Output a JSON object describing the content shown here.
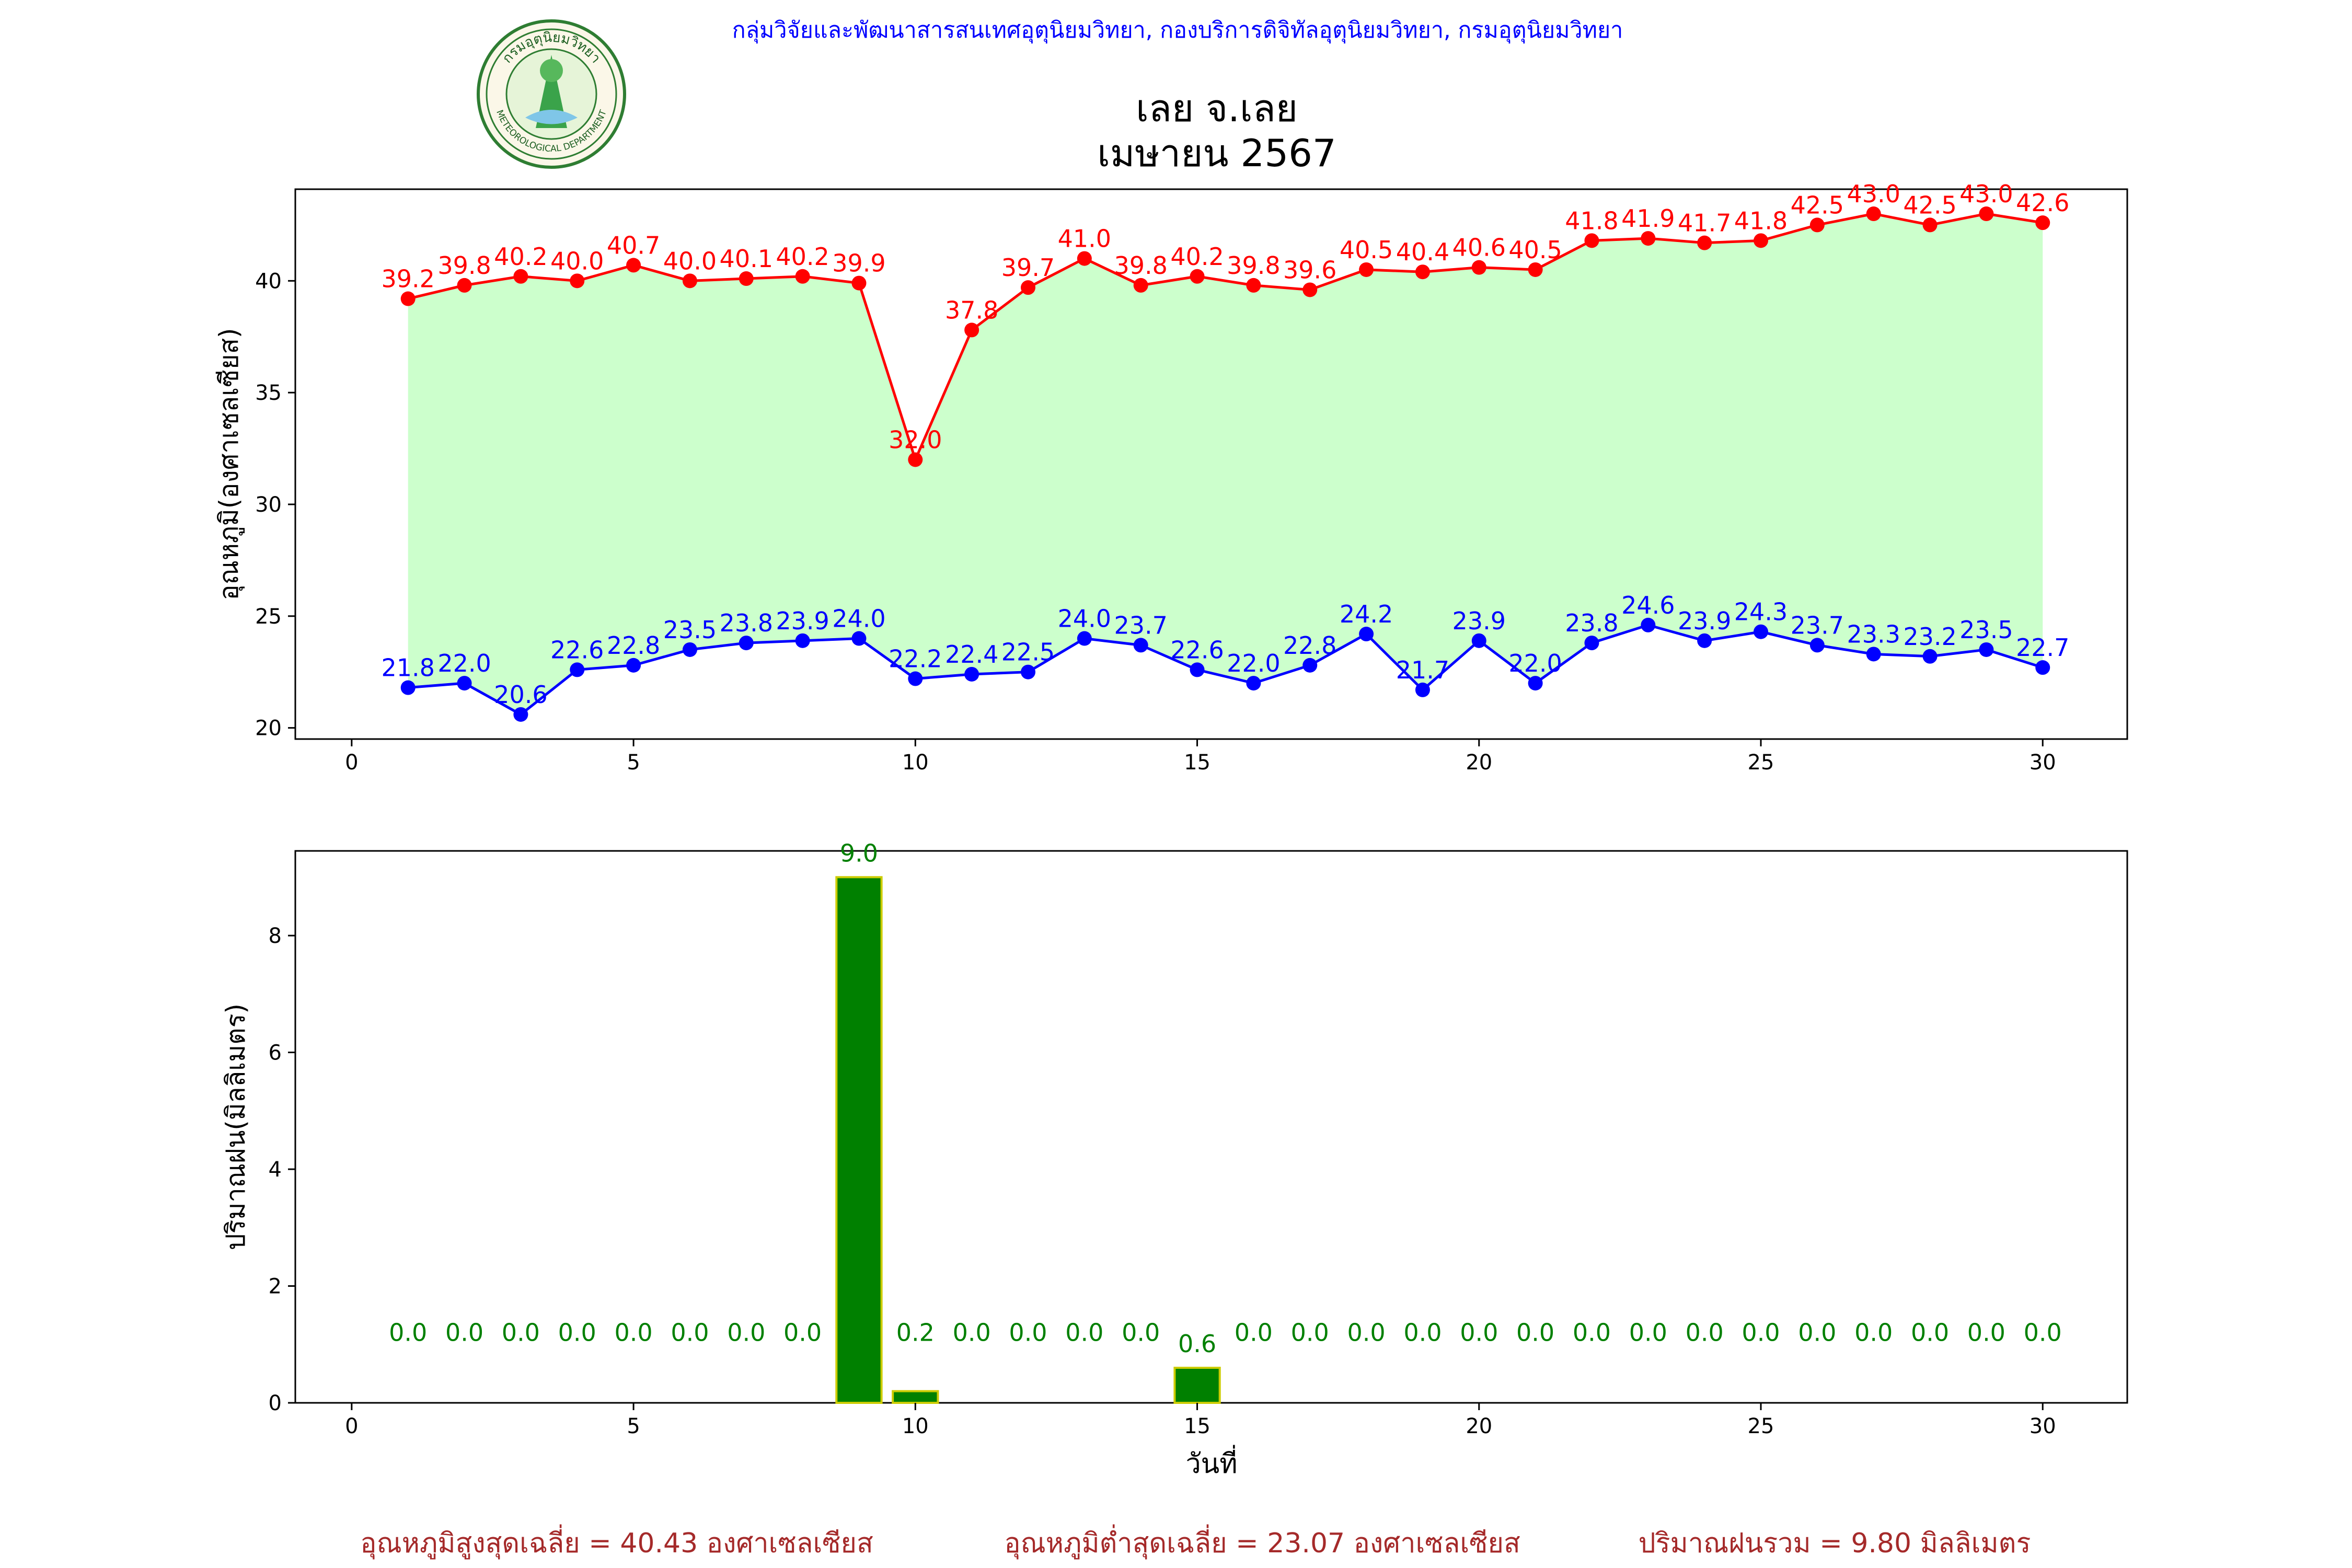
{
  "header": {
    "agency": "กลุ่มวิจัยและพัฒนาสารสนเทศอุตุนิยมวิทยา, กองบริการดิจิทัลอุตุนิยมวิทยา, กรมอุตุนิยมวิทยา",
    "title_line1": "เลย จ.เลย",
    "title_line2": "เมษายน 2567",
    "logo_text_top": "กรมอุตุนิยมวิทยา",
    "logo_text_bottom": "METEOROLOGICAL DEPARTMENT"
  },
  "summary": {
    "avg_max": "อุณหภูมิสูงสุดเฉลี่ย = 40.43 องศาเซลเซียส",
    "avg_min": "อุณหภูมิต่ำสุดเฉลี่ย = 23.07 องศาเซลเซียส",
    "rain_total": "ปริมาณฝนรวม = 9.80 มิลลิเมตร"
  },
  "colors": {
    "max_line": "#ff0000",
    "min_line": "#0000ff",
    "fill": "#ccffcc",
    "rain_bar": "#008000",
    "rain_edge": "#cccc00",
    "rain_label": "#008000",
    "header_text": "#0000ff",
    "summary_text": "#a52a2a"
  },
  "chart_data": [
    {
      "type": "line",
      "ylabel": "อุณหภูมิ(องศาเซลเซียส)",
      "xlabel": "",
      "xlim": [
        -1,
        31.5
      ],
      "ylim": [
        19.5,
        44.1
      ],
      "xticks": [
        0,
        5,
        10,
        15,
        20,
        25,
        30
      ],
      "yticks": [
        20,
        25,
        30,
        35,
        40
      ],
      "grid": false,
      "x": [
        1,
        2,
        3,
        4,
        5,
        6,
        7,
        8,
        9,
        10,
        11,
        12,
        13,
        14,
        15,
        16,
        17,
        18,
        19,
        20,
        21,
        22,
        23,
        24,
        25,
        26,
        27,
        28,
        29,
        30
      ],
      "series": [
        {
          "key": "max",
          "values": [
            39.2,
            39.8,
            40.2,
            40.0,
            40.7,
            40.0,
            40.1,
            40.2,
            39.9,
            32.0,
            37.8,
            39.7,
            41.0,
            39.8,
            40.2,
            39.8,
            39.6,
            40.5,
            40.4,
            40.6,
            40.5,
            41.8,
            41.9,
            41.7,
            41.8,
            42.5,
            43.0,
            42.5,
            43.0,
            42.6
          ]
        },
        {
          "key": "min",
          "values": [
            21.8,
            22.0,
            20.6,
            22.6,
            22.8,
            23.5,
            23.8,
            23.9,
            24.0,
            22.2,
            22.4,
            22.5,
            24.0,
            23.7,
            22.6,
            22.0,
            22.8,
            24.2,
            21.7,
            23.9,
            22.0,
            23.8,
            24.6,
            23.9,
            24.3,
            23.7,
            23.3,
            23.2,
            23.5,
            22.7
          ]
        }
      ]
    },
    {
      "type": "bar",
      "ylabel": "ปริมาณฝน(มิลลิเมตร)",
      "xlabel": "วันที่",
      "xlim": [
        -1,
        31.5
      ],
      "ylim": [
        0,
        9.45
      ],
      "xticks": [
        0,
        5,
        10,
        15,
        20,
        25,
        30
      ],
      "yticks": [
        0,
        2,
        4,
        6,
        8
      ],
      "grid": false,
      "categories": [
        1,
        2,
        3,
        4,
        5,
        6,
        7,
        8,
        9,
        10,
        11,
        12,
        13,
        14,
        15,
        16,
        17,
        18,
        19,
        20,
        21,
        22,
        23,
        24,
        25,
        26,
        27,
        28,
        29,
        30
      ],
      "values": [
        0.0,
        0.0,
        0.0,
        0.0,
        0.0,
        0.0,
        0.0,
        0.0,
        9.0,
        0.2,
        0.0,
        0.0,
        0.0,
        0.0,
        0.6,
        0.0,
        0.0,
        0.0,
        0.0,
        0.0,
        0.0,
        0.0,
        0.0,
        0.0,
        0.0,
        0.0,
        0.0,
        0.0,
        0.0,
        0.0
      ]
    }
  ]
}
